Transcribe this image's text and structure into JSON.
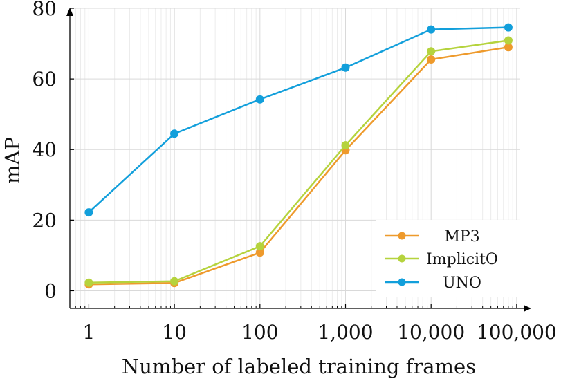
{
  "chart_data": {
    "type": "line",
    "xlabel": "Number of labeled training frames",
    "ylabel": "mAP",
    "xscale": "log",
    "xlim": [
      0.6,
      110000
    ],
    "ylim": [
      -5,
      80
    ],
    "grid": true,
    "legend_position": "bottom-right",
    "x_ticks": [
      {
        "value": 1,
        "label": "1"
      },
      {
        "value": 10,
        "label": "10"
      },
      {
        "value": 100,
        "label": "100"
      },
      {
        "value": 1000,
        "label": "1,000"
      },
      {
        "value": 10000,
        "label": "10,000"
      },
      {
        "value": 100000,
        "label": "100,000"
      }
    ],
    "y_ticks": [
      0,
      20,
      40,
      60,
      80
    ],
    "x": [
      1,
      10,
      100,
      1000,
      10000,
      80000
    ],
    "series": [
      {
        "name": "MP3",
        "color": "#ee9a2c",
        "values": [
          1.8,
          2.2,
          10.8,
          39.8,
          65.5,
          69.0
        ]
      },
      {
        "name": "ImplicitO",
        "color": "#b5d33d",
        "values": [
          2.3,
          2.7,
          12.6,
          41.2,
          67.8,
          70.9
        ]
      },
      {
        "name": "UNO",
        "color": "#129fdb",
        "values": [
          22.2,
          44.5,
          54.2,
          63.2,
          74.0,
          74.6
        ]
      }
    ]
  }
}
